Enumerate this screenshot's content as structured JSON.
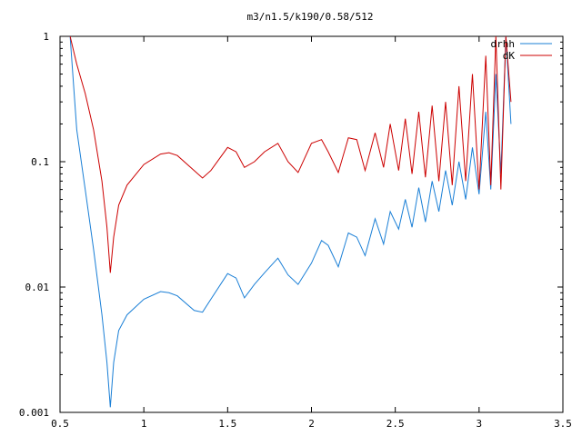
{
  "chart_data": {
    "type": "line",
    "title": "m3/n1.5/k190/0.58/512",
    "xlabel": "",
    "ylabel": "",
    "xlim": [
      0.5,
      3.5
    ],
    "ylim": [
      0.001,
      1
    ],
    "yscale": "log",
    "grid": false,
    "legend_position": "top-right",
    "x_ticks": [
      0.5,
      1,
      1.5,
      2,
      2.5,
      3,
      3.5
    ],
    "x_tick_labels": [
      "0.5",
      "1",
      "1.5",
      "2",
      "2.5",
      "3",
      "3.5"
    ],
    "y_ticks": [
      0.001,
      0.01,
      0.1,
      1
    ],
    "y_tick_labels": [
      "0.001",
      "0.01",
      "0.1",
      "1"
    ],
    "series": [
      {
        "name": "drhh",
        "color": "#1a7fd6",
        "x": [
          0.56,
          0.6,
          0.65,
          0.7,
          0.75,
          0.78,
          0.8,
          0.82,
          0.85,
          0.9,
          1.0,
          1.1,
          1.15,
          1.2,
          1.3,
          1.35,
          1.4,
          1.5,
          1.55,
          1.6,
          1.66,
          1.72,
          1.8,
          1.86,
          1.92,
          2.0,
          2.06,
          2.1,
          2.16,
          2.22,
          2.27,
          2.32,
          2.38,
          2.43,
          2.47,
          2.52,
          2.56,
          2.6,
          2.64,
          2.68,
          2.72,
          2.76,
          2.8,
          2.84,
          2.88,
          2.92,
          2.96,
          3.0,
          3.04,
          3.07,
          3.1,
          3.13,
          3.16,
          3.19
        ],
        "y": [
          1.0,
          0.18,
          0.06,
          0.02,
          0.006,
          0.0025,
          0.0011,
          0.0025,
          0.0045,
          0.006,
          0.008,
          0.0092,
          0.009,
          0.0085,
          0.0065,
          0.0063,
          0.008,
          0.0128,
          0.0118,
          0.0082,
          0.0105,
          0.013,
          0.017,
          0.0125,
          0.0105,
          0.0155,
          0.0235,
          0.0215,
          0.0145,
          0.027,
          0.025,
          0.0178,
          0.035,
          0.022,
          0.04,
          0.029,
          0.05,
          0.03,
          0.062,
          0.033,
          0.07,
          0.04,
          0.085,
          0.045,
          0.1,
          0.05,
          0.13,
          0.055,
          0.25,
          0.06,
          0.5,
          0.08,
          1.0,
          0.2
        ]
      },
      {
        "name": "dK",
        "color": "#cc0000",
        "x": [
          0.56,
          0.6,
          0.65,
          0.7,
          0.75,
          0.78,
          0.8,
          0.82,
          0.85,
          0.9,
          1.0,
          1.1,
          1.15,
          1.2,
          1.3,
          1.35,
          1.4,
          1.5,
          1.55,
          1.6,
          1.66,
          1.72,
          1.8,
          1.86,
          1.92,
          2.0,
          2.06,
          2.1,
          2.16,
          2.22,
          2.27,
          2.32,
          2.38,
          2.43,
          2.47,
          2.52,
          2.56,
          2.6,
          2.64,
          2.68,
          2.72,
          2.76,
          2.8,
          2.84,
          2.88,
          2.92,
          2.96,
          3.0,
          3.04,
          3.07,
          3.1,
          3.13,
          3.16,
          3.19
        ],
        "y": [
          1.0,
          0.6,
          0.35,
          0.18,
          0.07,
          0.03,
          0.013,
          0.025,
          0.045,
          0.065,
          0.095,
          0.115,
          0.118,
          0.112,
          0.085,
          0.074,
          0.085,
          0.13,
          0.12,
          0.09,
          0.1,
          0.12,
          0.14,
          0.1,
          0.082,
          0.14,
          0.15,
          0.12,
          0.082,
          0.155,
          0.15,
          0.085,
          0.17,
          0.09,
          0.2,
          0.085,
          0.22,
          0.08,
          0.25,
          0.075,
          0.28,
          0.07,
          0.3,
          0.065,
          0.4,
          0.07,
          0.5,
          0.06,
          0.7,
          0.065,
          1.0,
          0.06,
          1.0,
          0.3
        ]
      }
    ]
  }
}
